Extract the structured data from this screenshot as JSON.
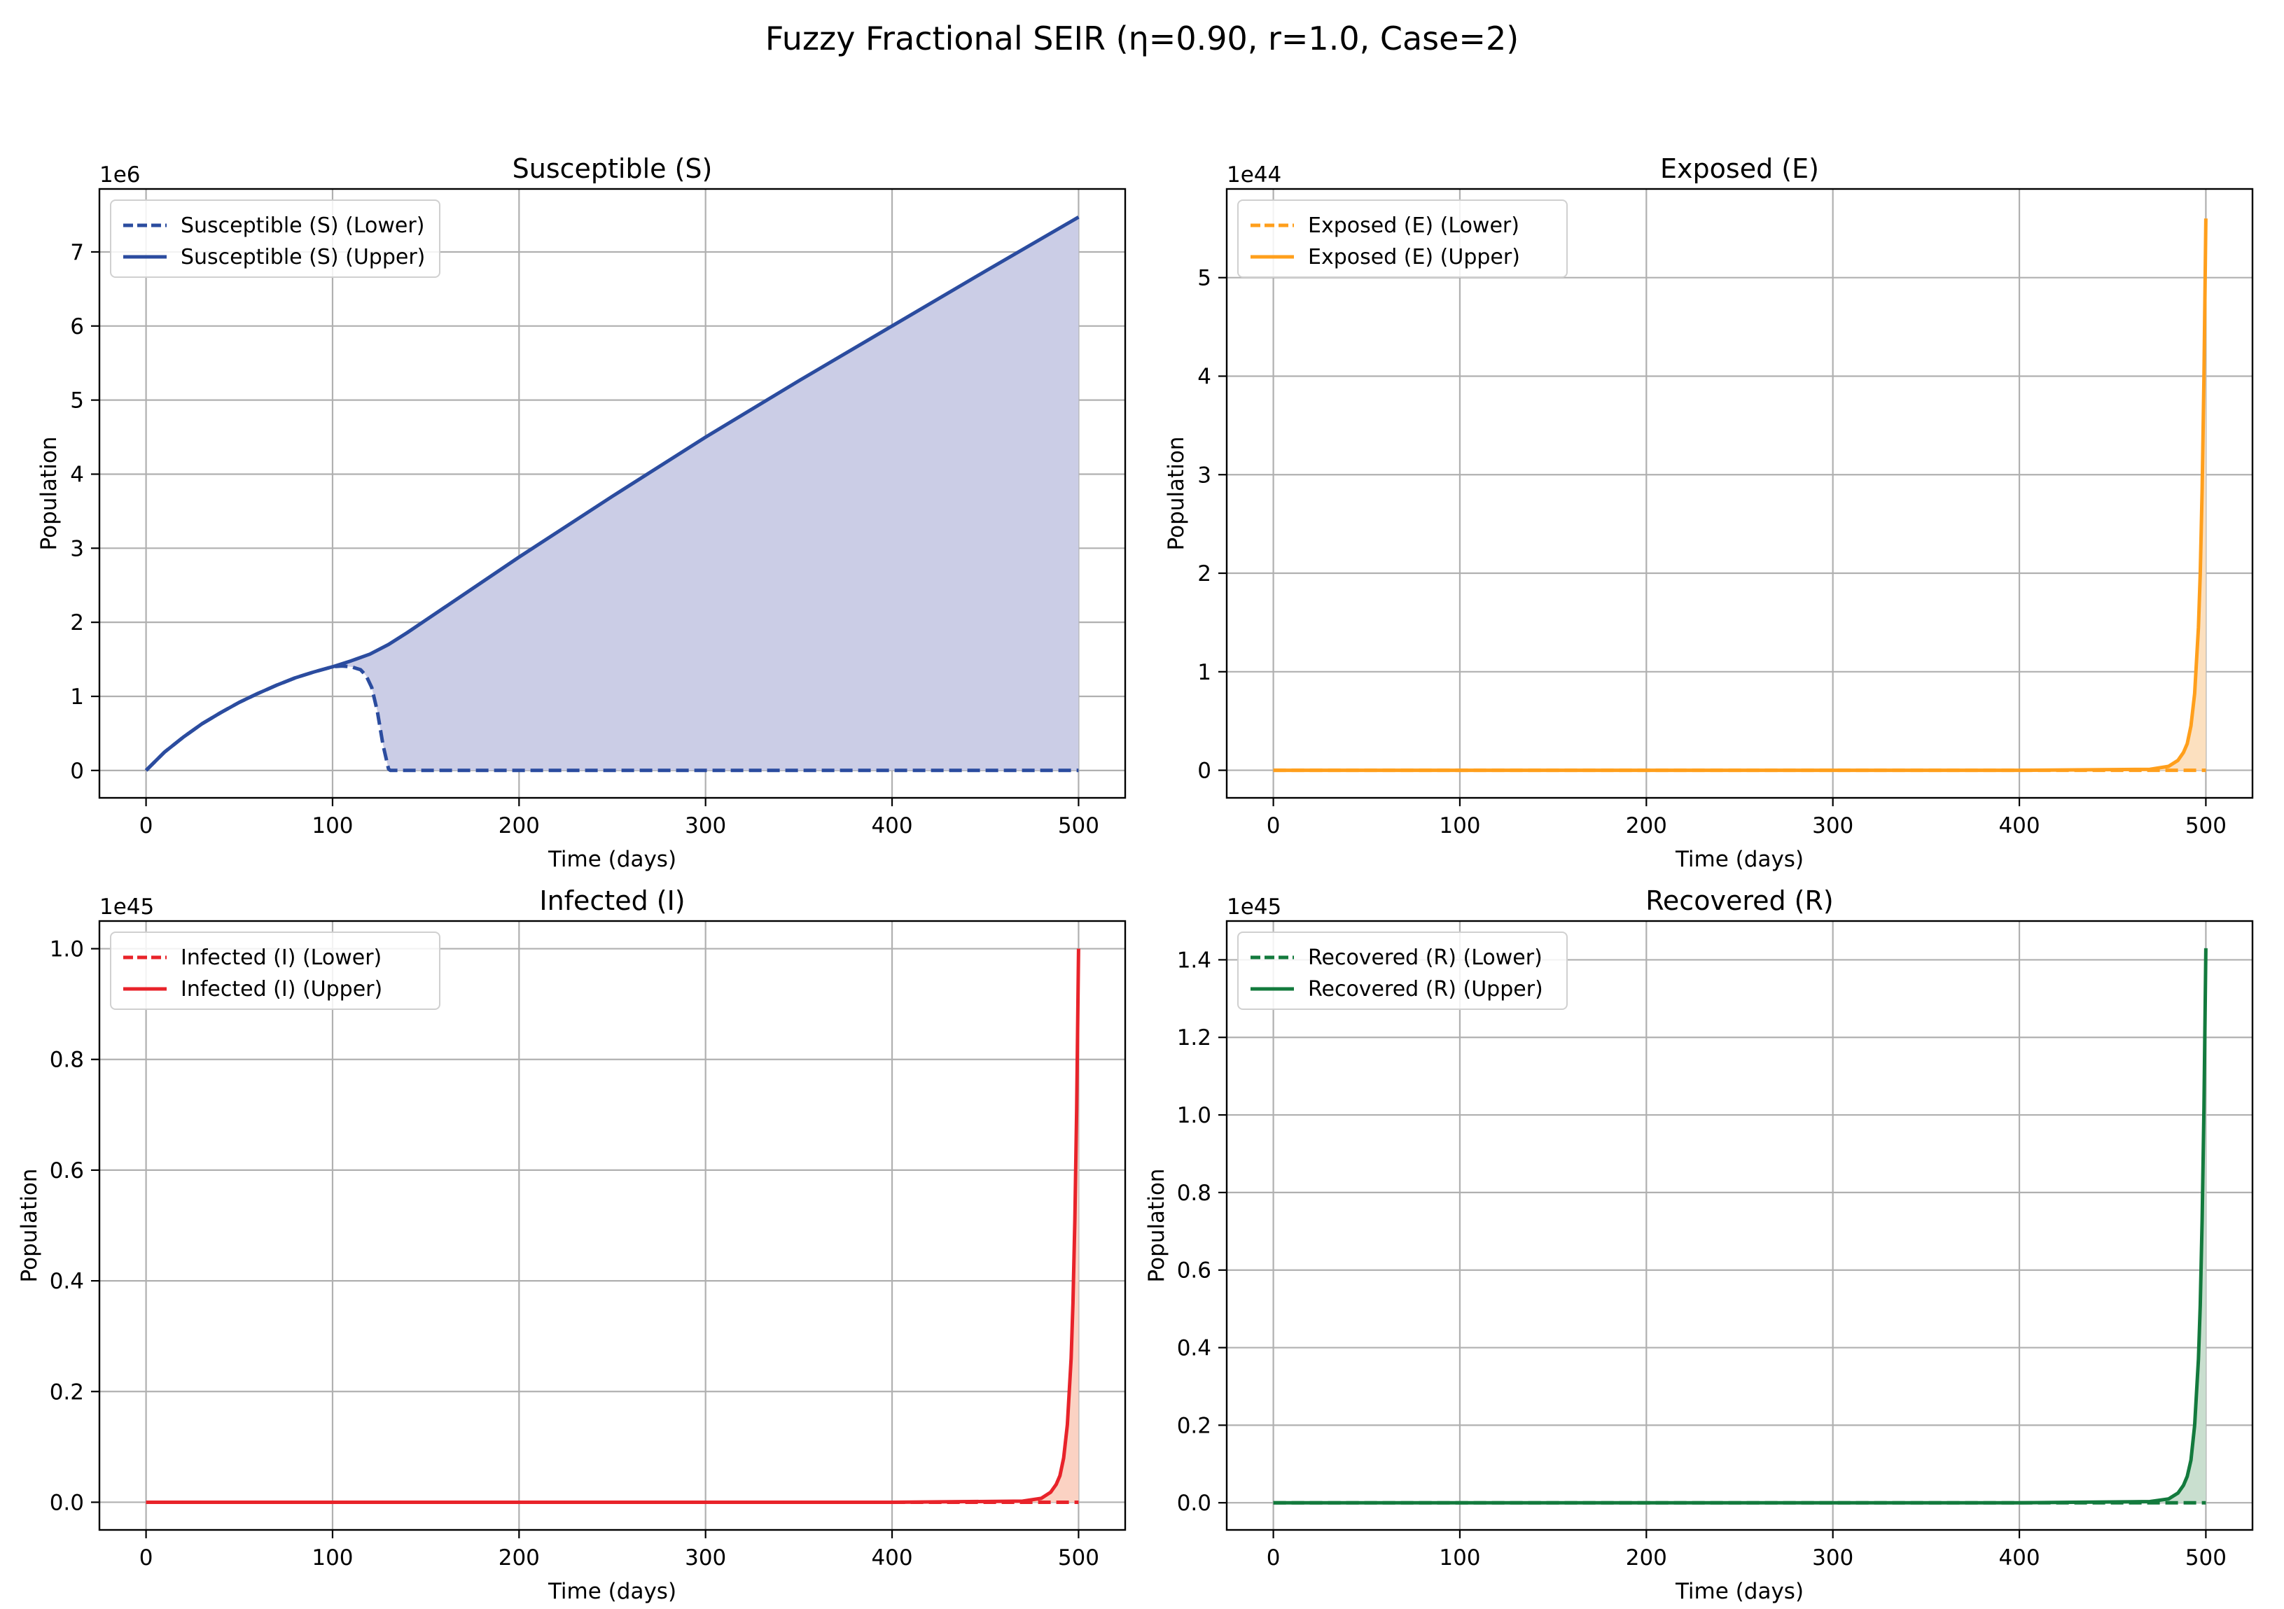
{
  "figure": {
    "title": "Fuzzy Fractional SEIR (η=0.90, r=1.0, Case=2)"
  },
  "chart_data": [
    {
      "type": "line",
      "title": "Susceptible (S)",
      "xlabel": "Time (days)",
      "ylabel": "Population",
      "offset_label": "1e6",
      "xlim": [
        -25,
        525
      ],
      "ylim": [
        -0.37,
        7.85
      ],
      "xticks": [
        0,
        100,
        200,
        300,
        400,
        500
      ],
      "yticks": [
        0,
        1,
        2,
        3,
        4,
        5,
        6,
        7
      ],
      "ytick_labels": [
        "0",
        "1",
        "2",
        "3",
        "4",
        "5",
        "6",
        "7"
      ],
      "grid": true,
      "legend_position": "upper-left",
      "fill_color": "#cbcde6",
      "series": [
        {
          "name": "Susceptible (S) (Lower)",
          "style": "dashed",
          "color": "#2b4c9f",
          "x": [
            0,
            10,
            20,
            30,
            40,
            50,
            60,
            70,
            80,
            90,
            100,
            105,
            110,
            115,
            118,
            121,
            124,
            127,
            130,
            131,
            200,
            300,
            400,
            500
          ],
          "y": [
            0,
            0.25,
            0.45,
            0.63,
            0.78,
            0.92,
            1.04,
            1.15,
            1.25,
            1.33,
            1.4,
            1.41,
            1.4,
            1.36,
            1.28,
            1.12,
            0.8,
            0.35,
            0.02,
            0.0,
            0.0,
            0.0,
            0.0,
            0.0
          ]
        },
        {
          "name": "Susceptible (S) (Upper)",
          "style": "solid",
          "color": "#2b4c9f",
          "x": [
            0,
            10,
            20,
            30,
            40,
            50,
            60,
            70,
            80,
            90,
            100,
            110,
            120,
            130,
            140,
            160,
            200,
            250,
            300,
            350,
            400,
            450,
            500
          ],
          "y": [
            0,
            0.25,
            0.45,
            0.63,
            0.78,
            0.92,
            1.04,
            1.15,
            1.25,
            1.33,
            1.4,
            1.48,
            1.57,
            1.7,
            1.86,
            2.2,
            2.88,
            3.7,
            4.5,
            5.26,
            6.0,
            6.74,
            7.47
          ]
        }
      ]
    },
    {
      "type": "line",
      "title": "Exposed (E)",
      "xlabel": "Time (days)",
      "ylabel": "Population",
      "offset_label": "1e44",
      "xlim": [
        -25,
        525
      ],
      "ylim": [
        -0.28,
        5.9
      ],
      "xticks": [
        0,
        100,
        200,
        300,
        400,
        500
      ],
      "yticks": [
        0,
        1,
        2,
        3,
        4,
        5
      ],
      "ytick_labels": [
        "0",
        "1",
        "2",
        "3",
        "4",
        "5"
      ],
      "grid": true,
      "legend_position": "upper-left",
      "fill_color": "#fce0bf",
      "series": [
        {
          "name": "Exposed (E) (Lower)",
          "style": "dashed",
          "color": "#ff9f1c",
          "x": [
            0,
            100,
            200,
            300,
            400,
            500
          ],
          "y": [
            0,
            0,
            0,
            0,
            0,
            0
          ]
        },
        {
          "name": "Exposed (E) (Upper)",
          "style": "solid",
          "color": "#ff9f1c",
          "x": [
            0,
            100,
            200,
            300,
            400,
            470,
            480,
            485,
            488,
            490,
            492,
            494,
            496,
            497,
            498,
            499,
            500
          ],
          "y": [
            0,
            0,
            0,
            0,
            0,
            0.01,
            0.04,
            0.1,
            0.18,
            0.27,
            0.45,
            0.78,
            1.45,
            2.0,
            2.85,
            4.0,
            5.6
          ]
        }
      ]
    },
    {
      "type": "line",
      "title": "Infected (I)",
      "xlabel": "Time (days)",
      "ylabel": "Population",
      "offset_label": "1e45",
      "xlim": [
        -25,
        525
      ],
      "ylim": [
        -0.05,
        1.05
      ],
      "xticks": [
        0,
        100,
        200,
        300,
        400,
        500
      ],
      "yticks": [
        0,
        0.2,
        0.4,
        0.6,
        0.8,
        1.0
      ],
      "ytick_labels": [
        "0.0",
        "0.2",
        "0.4",
        "0.6",
        "0.8",
        "1.0"
      ],
      "grid": true,
      "legend_position": "upper-left",
      "fill_color": "#fbd2c3",
      "series": [
        {
          "name": "Infected (I) (Lower)",
          "style": "dashed",
          "color": "#e8232a",
          "x": [
            0,
            100,
            200,
            300,
            400,
            500
          ],
          "y": [
            0,
            0,
            0,
            0,
            0,
            0
          ]
        },
        {
          "name": "Infected (I) (Upper)",
          "style": "solid",
          "color": "#e8232a",
          "x": [
            0,
            100,
            200,
            300,
            400,
            470,
            480,
            485,
            488,
            490,
            492,
            494,
            496,
            497,
            498,
            499,
            500
          ],
          "y": [
            0,
            0,
            0,
            0,
            0,
            0.002,
            0.007,
            0.018,
            0.032,
            0.048,
            0.08,
            0.14,
            0.26,
            0.36,
            0.51,
            0.71,
            1.0
          ]
        }
      ]
    },
    {
      "type": "line",
      "title": "Recovered (R)",
      "xlabel": "Time (days)",
      "ylabel": "Population",
      "offset_label": "1e45",
      "xlim": [
        -25,
        525
      ],
      "ylim": [
        -0.07,
        1.5
      ],
      "xticks": [
        0,
        100,
        200,
        300,
        400,
        500
      ],
      "yticks": [
        0,
        0.2,
        0.4,
        0.6,
        0.8,
        1.0,
        1.2,
        1.4
      ],
      "ytick_labels": [
        "0.0",
        "0.2",
        "0.4",
        "0.6",
        "0.8",
        "1.0",
        "1.2",
        "1.4"
      ],
      "grid": true,
      "legend_position": "upper-left",
      "fill_color": "#c9dfcf",
      "series": [
        {
          "name": "Recovered (R) (Lower)",
          "style": "dashed",
          "color": "#137a3d",
          "x": [
            0,
            100,
            200,
            300,
            400,
            500
          ],
          "y": [
            0,
            0,
            0,
            0,
            0,
            0
          ]
        },
        {
          "name": "Recovered (R) (Upper)",
          "style": "solid",
          "color": "#137a3d",
          "x": [
            0,
            100,
            200,
            300,
            400,
            470,
            480,
            485,
            488,
            490,
            492,
            494,
            496,
            497,
            498,
            499,
            500
          ],
          "y": [
            0,
            0,
            0,
            0,
            0,
            0.003,
            0.01,
            0.025,
            0.045,
            0.068,
            0.11,
            0.2,
            0.37,
            0.51,
            0.73,
            1.02,
            1.43
          ]
        }
      ]
    }
  ]
}
